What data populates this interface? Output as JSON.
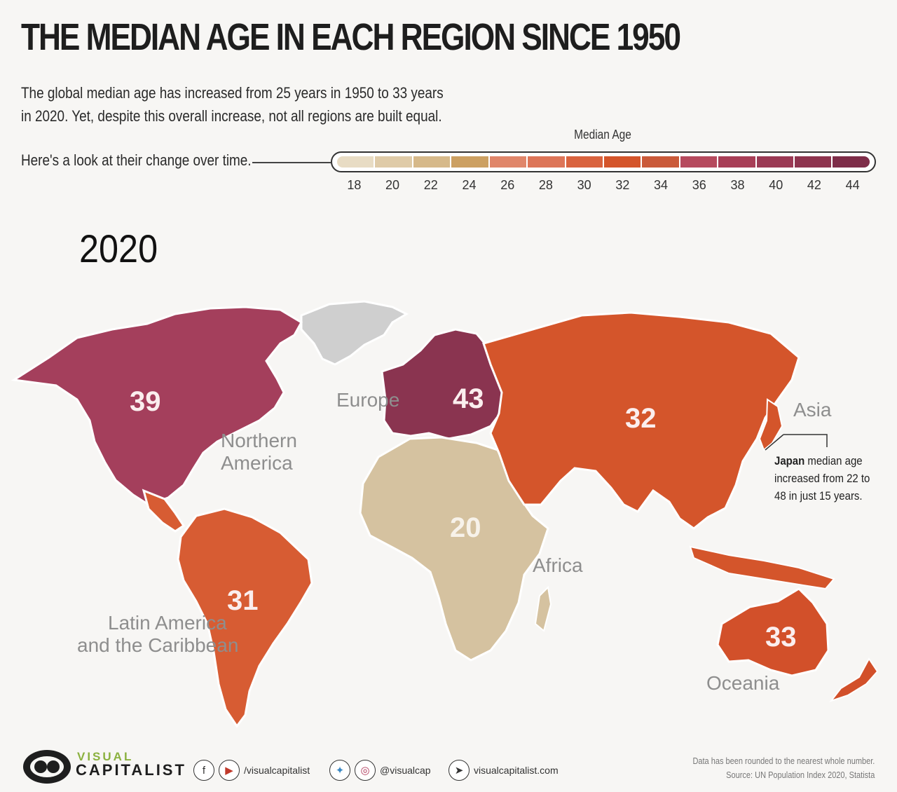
{
  "header": {
    "title": "THE MEDIAN AGE IN EACH REGION SINCE 1950",
    "subtitle_line1": "The global median age has increased from 25 years in 1950 to 33 years",
    "subtitle_line2": "in 2020. Yet, despite this overall increase, not all regions are built equal.",
    "lead": "Here's a look at their change over time."
  },
  "legend": {
    "title": "Median Age",
    "ticks": [
      "18",
      "20",
      "22",
      "24",
      "26",
      "28",
      "30",
      "32",
      "34",
      "36",
      "38",
      "40",
      "42",
      "44"
    ],
    "colors": [
      "#e8dcc4",
      "#dfcba8",
      "#d6b98a",
      "#cca062",
      "#e0866a",
      "#dd7558",
      "#d9633f",
      "#d4552b",
      "#ca5a3a",
      "#b64a5e",
      "#a83e57",
      "#9b3a55",
      "#8e344f",
      "#7e2d49"
    ]
  },
  "map": {
    "year": "2020",
    "regions": [
      {
        "name": "Northern America",
        "label_line1": "Northern",
        "label_line2": "America",
        "median_age": "39",
        "color": "#a43f5c"
      },
      {
        "name": "Europe",
        "label_line1": "Europe",
        "median_age": "43",
        "color": "#8a3450"
      },
      {
        "name": "Asia",
        "label_line1": "Asia",
        "median_age": "32",
        "color": "#d4552b"
      },
      {
        "name": "Africa",
        "label_line1": "Africa",
        "median_age": "20",
        "color": "#d5c2a0"
      },
      {
        "name": "Latin America and the Caribbean",
        "label_line1": "Latin America",
        "label_line2": "and the Caribbean",
        "median_age": "31",
        "color": "#d75c33"
      },
      {
        "name": "Oceania",
        "label_line1": "Oceania",
        "median_age": "33",
        "color": "#d2502a"
      }
    ],
    "no_data_color": "#cfcfcf",
    "annotation": {
      "bold": "Japan",
      "text_line1": " median age",
      "text_line2": "increased from 22 to",
      "text_line3": "48 in just 15 years."
    }
  },
  "footer": {
    "brand_top": "VISUAL",
    "brand_bottom": "CAPITALIST",
    "social1": "/visualcapitalist",
    "social2": "@visualcap",
    "website": "visualcapitalist.com",
    "note_line1": "Data has been rounded to the nearest whole number.",
    "note_line2": "Source: UN Population Index 2020, Statista"
  }
}
